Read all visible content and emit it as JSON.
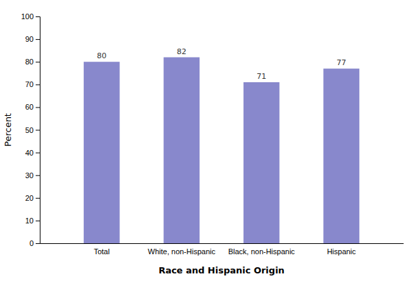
{
  "chart_data": {
    "type": "bar",
    "categories": [
      "Total",
      "White, non-Hispanic",
      "Black, non-Hispanic",
      "Hispanic"
    ],
    "values": [
      80,
      82,
      71,
      77
    ],
    "color": "#8888cc",
    "xlabel": "Race and Hispanic Origin",
    "ylabel": "Percent",
    "ylim": [
      0,
      100
    ],
    "yticks": [
      0,
      10,
      20,
      30,
      40,
      50,
      60,
      70,
      80,
      90,
      100
    ],
    "grid": false,
    "data_labels": true
  }
}
